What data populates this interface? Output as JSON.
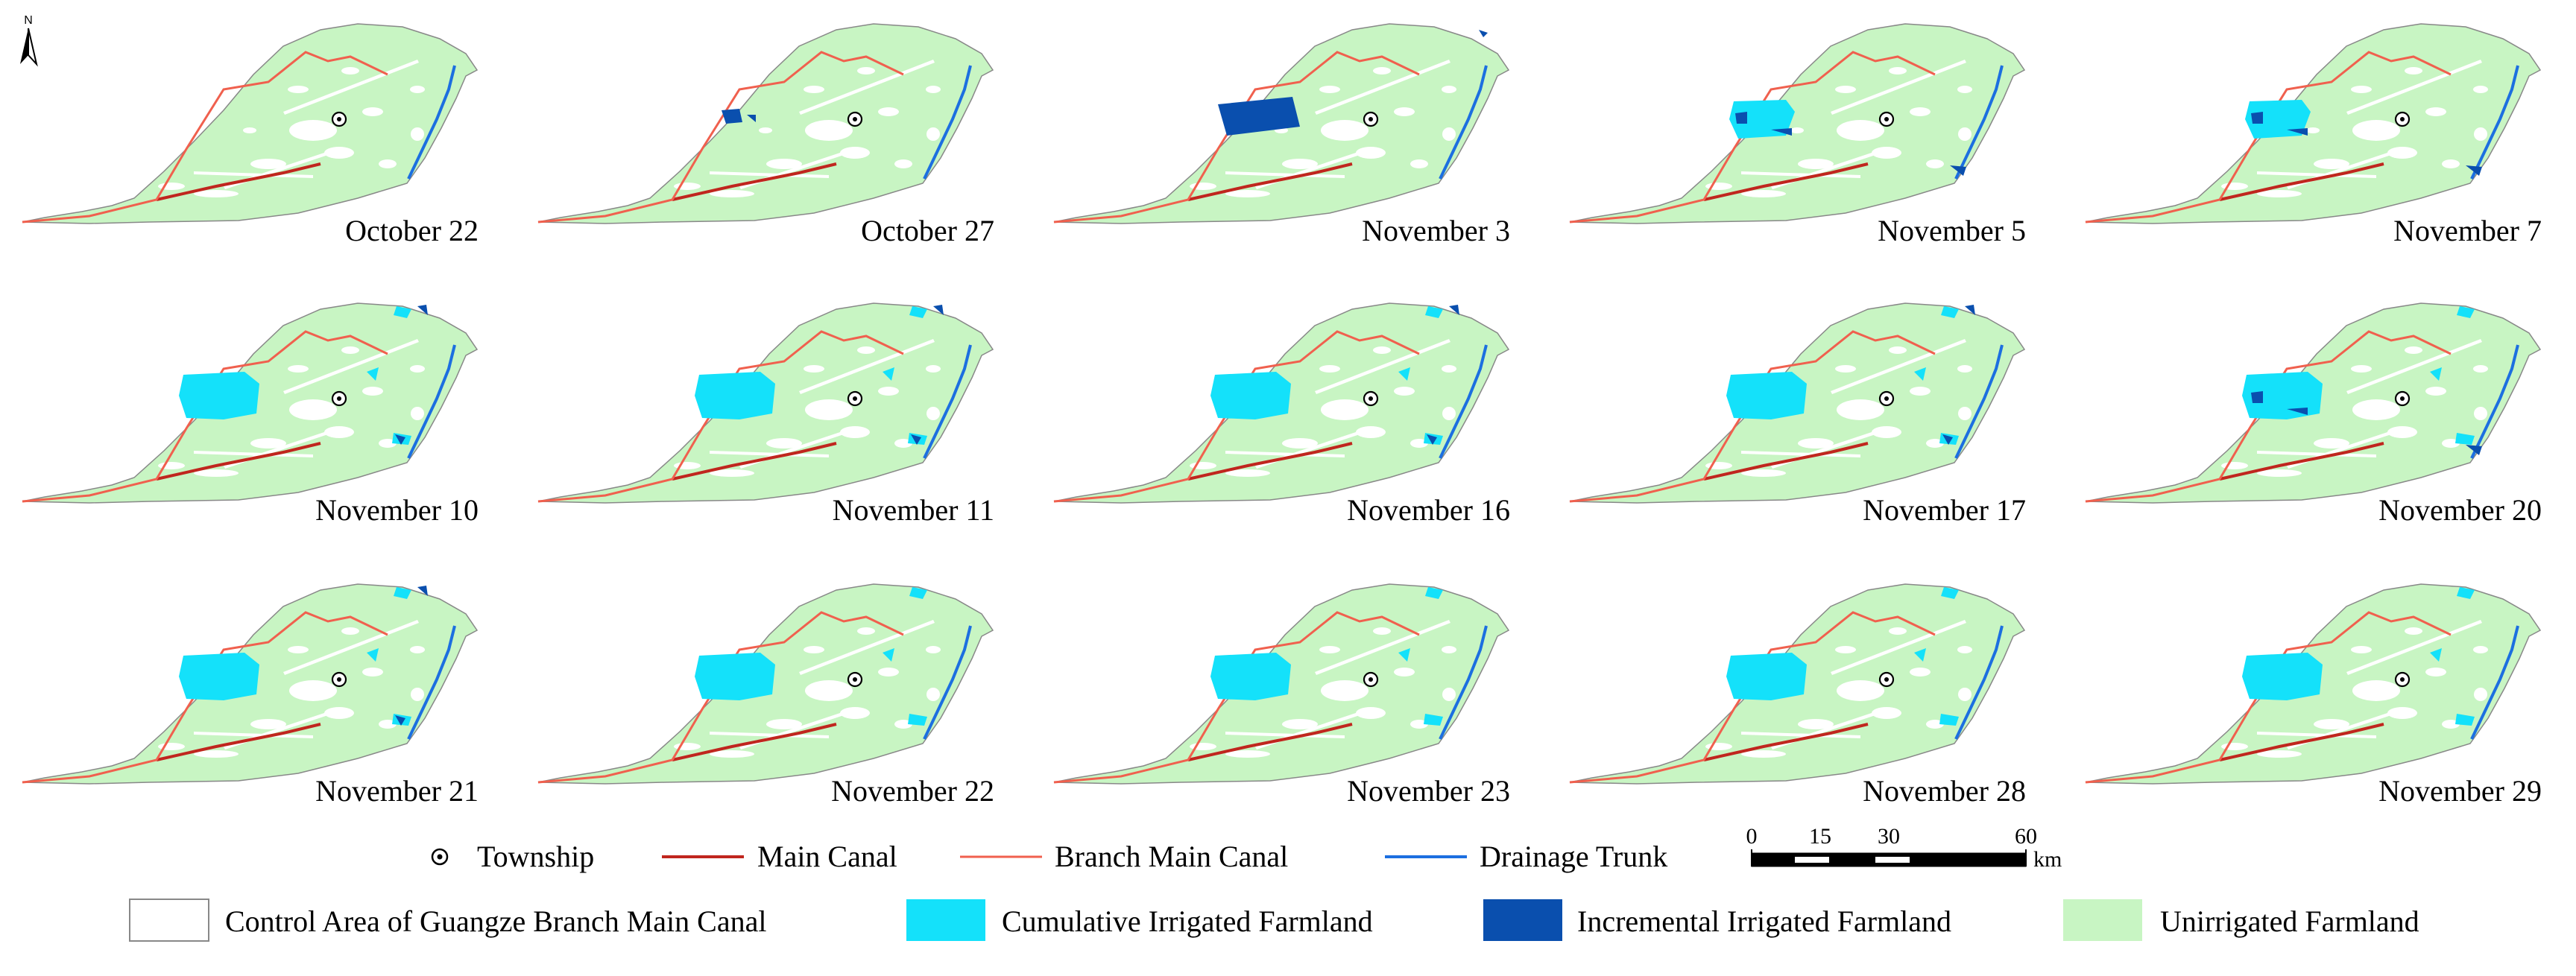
{
  "north_arrow": {
    "label": "N"
  },
  "panels": [
    {
      "date": "October 22",
      "cumulative": "none",
      "incremental": "none"
    },
    {
      "date": "October 27",
      "cumulative": "none",
      "incremental": "small"
    },
    {
      "date": "November 3",
      "cumulative": "none",
      "incremental": "large"
    },
    {
      "date": "November 5",
      "cumulative": "medium",
      "incremental": "some"
    },
    {
      "date": "November 7",
      "cumulative": "medium",
      "incremental": "some"
    },
    {
      "date": "November 10",
      "cumulative": "large",
      "incremental": "few"
    },
    {
      "date": "November 11",
      "cumulative": "large",
      "incremental": "few"
    },
    {
      "date": "November 16",
      "cumulative": "large",
      "incremental": "few"
    },
    {
      "date": "November 17",
      "cumulative": "large",
      "incremental": "few"
    },
    {
      "date": "November 20",
      "cumulative": "large",
      "incremental": "some"
    },
    {
      "date": "November 21",
      "cumulative": "large",
      "incremental": "few"
    },
    {
      "date": "November 22",
      "cumulative": "large",
      "incremental": "none"
    },
    {
      "date": "November 23",
      "cumulative": "large",
      "incremental": "none"
    },
    {
      "date": "November 28",
      "cumulative": "large",
      "incremental": "none"
    },
    {
      "date": "November 29",
      "cumulative": "large",
      "incremental": "none"
    }
  ],
  "legend": {
    "township": "Township",
    "main_canal": "Main Canal",
    "branch_main_canal": "Branch Main Canal",
    "drainage_trunk": "Drainage Trunk",
    "control_area": "Control Area of Guangze Branch Main Canal",
    "cumulative": "Cumulative Irrigated Farmland",
    "incremental": "Incremental Irrigated Farmland",
    "unirrigated": "Unirrigated Farmland"
  },
  "scale_bar": {
    "ticks": [
      "0",
      "15",
      "30",
      "60"
    ],
    "unit": "km"
  },
  "colors": {
    "unirrigated": "#c8f5c3",
    "cumulative": "#14e1fa",
    "incremental": "#0a4fae",
    "main_canal": "#c0261e",
    "branch_main_canal": "#f0604e",
    "drainage_trunk": "#1c6fe0",
    "boundary": "#888888"
  }
}
